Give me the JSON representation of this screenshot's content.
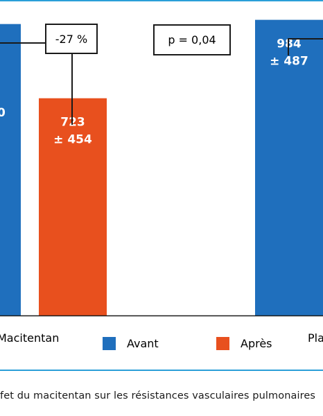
{
  "colors": {
    "avant": "#1f6fbd",
    "apres": "#e8501e",
    "rule": "#2a9fd8"
  },
  "chart_data": {
    "type": "bar",
    "title": "",
    "xlabel": "",
    "ylabel": "",
    "ylim": [
      0,
      1050
    ],
    "grid": false,
    "legend": "bottom",
    "categories": [
      "Macitentan",
      "Placebo"
    ],
    "series": [
      {
        "name": "Avant",
        "values": [
          970,
          984
        ],
        "labels": [
          "",
          "984\n± 487"
        ]
      },
      {
        "name": "Après",
        "values": [
          723,
          null
        ],
        "labels": [
          "723\n± 454",
          ""
        ]
      }
    ],
    "annotations": {
      "change": "-27 %",
      "pvalue": "p = 0,04"
    }
  },
  "caption": "fet du macitentan sur les résistances vasculaires pulmonaires"
}
